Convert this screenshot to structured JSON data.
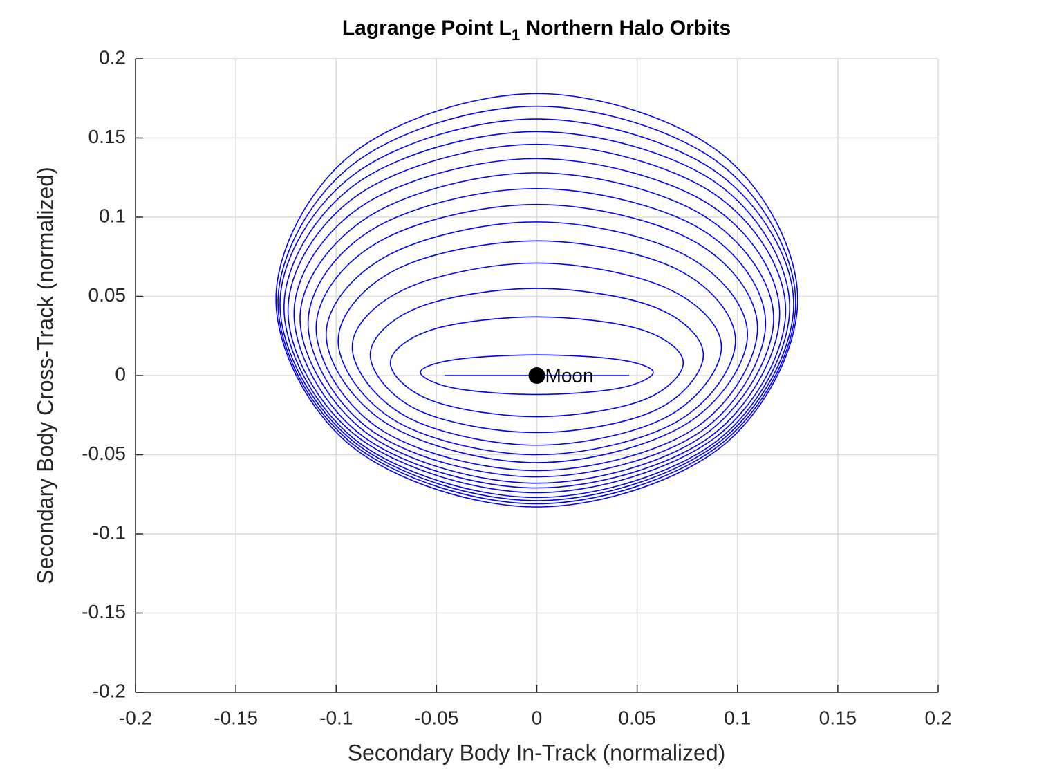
{
  "chart_data": {
    "type": "line",
    "title": [
      "Lagrange Point L",
      "1",
      " Northern Halo Orbits"
    ],
    "xlabel": "Secondary Body In-Track (normalized)",
    "ylabel": "Secondary Body Cross-Track (normalized)",
    "xlim": [
      -0.2,
      0.2
    ],
    "ylim": [
      -0.2,
      0.2
    ],
    "xticks": [
      -0.2,
      -0.15,
      -0.1,
      -0.05,
      0,
      0.05,
      0.1,
      0.15,
      0.2
    ],
    "yticks": [
      -0.2,
      -0.15,
      -0.1,
      -0.05,
      0,
      0.05,
      0.1,
      0.15,
      0.2
    ],
    "grid": true,
    "series": [
      {
        "color": "#0000ff",
        "x": [
          -0.046,
          0.046
        ],
        "y": [
          0,
          0
        ]
      },
      {
        "color": "#0000ff",
        "x": [
          0.058,
          0.041,
          0,
          -0.041,
          -0.058,
          -0.041,
          0,
          0.041
        ],
        "y": [
          0.002,
          0.01,
          0.013,
          0.01,
          0.002,
          -0.008,
          -0.012,
          -0.008
        ]
      },
      {
        "color": "#0000ff",
        "x": [
          0.073,
          0.052,
          0,
          -0.052,
          -0.073,
          -0.052,
          0,
          0.052
        ],
        "y": [
          0.008,
          0.029,
          0.037,
          0.029,
          0.008,
          -0.016,
          -0.026,
          -0.016
        ]
      },
      {
        "color": "#0000ff",
        "x": [
          0.083,
          0.059,
          0,
          -0.059,
          -0.083,
          -0.059,
          0,
          0.059
        ],
        "y": [
          0.013,
          0.043,
          0.055,
          0.043,
          0.013,
          -0.022,
          -0.036,
          -0.022
        ]
      },
      {
        "color": "#0000ff",
        "x": [
          0.092,
          0.065,
          0,
          -0.065,
          -0.092,
          -0.065,
          0,
          0.065
        ],
        "y": [
          0.018,
          0.055,
          0.071,
          0.055,
          0.018,
          -0.026,
          -0.044,
          -0.026
        ]
      },
      {
        "color": "#0000ff",
        "x": [
          0.099,
          0.07,
          0,
          -0.07,
          -0.099,
          -0.07,
          0,
          0.07
        ],
        "y": [
          0.022,
          0.067,
          0.085,
          0.067,
          0.022,
          -0.029,
          -0.05,
          -0.029
        ]
      },
      {
        "color": "#0000ff",
        "x": [
          0.105,
          0.074,
          0,
          -0.074,
          -0.105,
          -0.074,
          0,
          0.074
        ],
        "y": [
          0.026,
          0.076,
          0.097,
          0.076,
          0.026,
          -0.031,
          -0.055,
          -0.031
        ]
      },
      {
        "color": "#0000ff",
        "x": [
          0.11,
          0.078,
          0,
          -0.078,
          -0.11,
          -0.078,
          0,
          0.078
        ],
        "y": [
          0.03,
          0.085,
          0.108,
          0.085,
          0.03,
          -0.034,
          -0.06,
          -0.034
        ]
      },
      {
        "color": "#0000ff",
        "x": [
          0.114,
          0.081,
          0,
          -0.081,
          -0.114,
          -0.081,
          0,
          0.081
        ],
        "y": [
          0.033,
          0.093,
          0.118,
          0.093,
          0.033,
          -0.036,
          -0.064,
          -0.036
        ]
      },
      {
        "color": "#0000ff",
        "x": [
          0.118,
          0.083,
          0,
          -0.083,
          -0.118,
          -0.083,
          0,
          0.083
        ],
        "y": [
          0.036,
          0.101,
          0.128,
          0.101,
          0.036,
          -0.038,
          -0.068,
          -0.038
        ]
      },
      {
        "color": "#0000ff",
        "x": [
          0.121,
          0.086,
          0,
          -0.086,
          -0.121,
          -0.086,
          0,
          0.086
        ],
        "y": [
          0.039,
          0.108,
          0.137,
          0.108,
          0.039,
          -0.039,
          -0.071,
          -0.039
        ]
      },
      {
        "color": "#0000ff",
        "x": [
          0.124,
          0.088,
          0,
          -0.088,
          -0.124,
          -0.088,
          0,
          0.088
        ],
        "y": [
          0.041,
          0.115,
          0.146,
          0.115,
          0.041,
          -0.04,
          -0.074,
          -0.04
        ]
      },
      {
        "color": "#0000ff",
        "x": [
          0.126,
          0.089,
          0,
          -0.089,
          -0.126,
          -0.089,
          0,
          0.089
        ],
        "y": [
          0.043,
          0.122,
          0.154,
          0.122,
          0.043,
          -0.042,
          -0.077,
          -0.042
        ]
      },
      {
        "color": "#0000ff",
        "x": [
          0.128,
          0.09,
          0,
          -0.09,
          -0.128,
          -0.09,
          0,
          0.09
        ],
        "y": [
          0.045,
          0.128,
          0.162,
          0.128,
          0.045,
          -0.043,
          -0.079,
          -0.043
        ]
      },
      {
        "color": "#0000ff",
        "x": [
          0.129,
          0.091,
          0,
          -0.091,
          -0.129,
          -0.091,
          0,
          0.091
        ],
        "y": [
          0.046,
          0.134,
          0.17,
          0.134,
          0.046,
          -0.044,
          -0.081,
          -0.044
        ]
      },
      {
        "color": "#0000ff",
        "x": [
          0.13,
          0.092,
          0,
          -0.092,
          -0.13,
          -0.092,
          0,
          0.092
        ],
        "y": [
          0.048,
          0.14,
          0.178,
          0.14,
          0.048,
          -0.045,
          -0.083,
          -0.045
        ]
      }
    ],
    "annotations": [
      {
        "text": "Moon",
        "x": 0,
        "y": 0,
        "color": "#000000"
      }
    ]
  }
}
